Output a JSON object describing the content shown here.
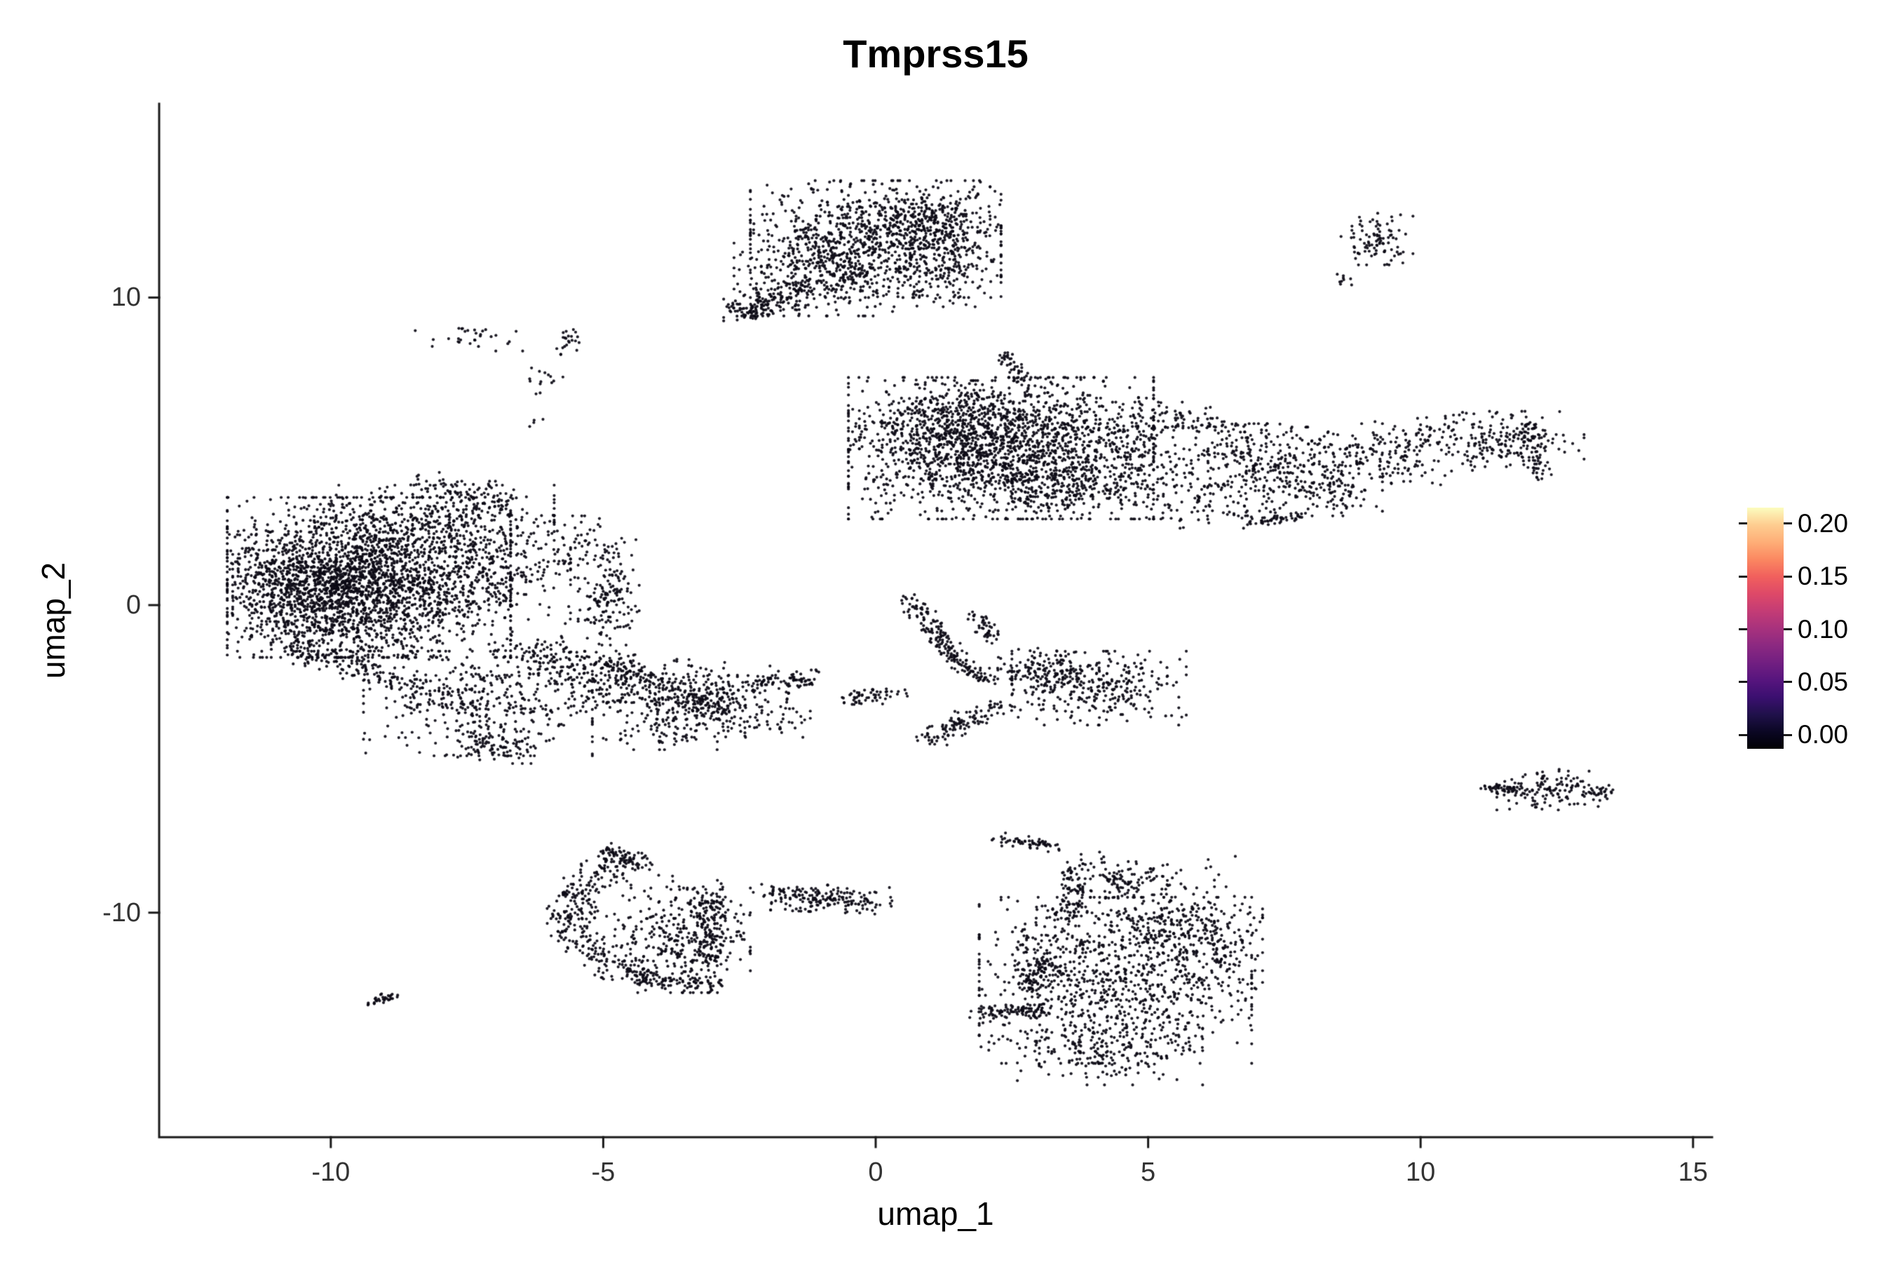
{
  "chart_data": {
    "type": "scatter",
    "title": "Tmprss15",
    "xlabel": "umap_1",
    "ylabel": "umap_2",
    "xlim": [
      -13.15,
      15.35
    ],
    "ylim": [
      -17.3,
      16.3
    ],
    "xticks": [
      -10,
      -5,
      0,
      5,
      10,
      15
    ],
    "xtick_labels": [
      "-10",
      "-5",
      "0",
      "5",
      "10",
      "15"
    ],
    "yticks": [
      -10,
      0,
      10
    ],
    "ytick_labels": [
      "-10",
      "0",
      "10"
    ],
    "grid": false,
    "legend_position": "right",
    "axis_color": "#1a1a1a",
    "point": {
      "color": "#0c0a15",
      "radius": 2.1,
      "alpha": 0.92
    },
    "colorbar": {
      "palette_name": "magma",
      "ticks": [
        "0.20",
        "0.15",
        "0.10",
        "0.05",
        "0.00"
      ],
      "tick_values": [
        0.2,
        0.15,
        0.1,
        0.05,
        0.0
      ],
      "value_top": 0.215,
      "value_bottom": -0.013,
      "gradient_bottom_to_top": [
        "#000004",
        "#0b0724",
        "#20114b",
        "#3b0f70",
        "#57157e",
        "#721f81",
        "#8c2981",
        "#a8327d",
        "#c43c75",
        "#de4968",
        "#f1605d",
        "#fb8861",
        "#feae77",
        "#fecd90",
        "#fcfdbf"
      ]
    },
    "clusters": [
      {
        "type": "blob",
        "cx": 0.0,
        "cy": 11.9,
        "sx": 1.15,
        "sy": 0.95,
        "n": 850
      },
      {
        "type": "blob",
        "cx": -0.9,
        "cy": 10.8,
        "sx": 0.85,
        "sy": 0.7,
        "n": 320
      },
      {
        "type": "blob",
        "cx": 0.9,
        "cy": 12.6,
        "sx": 0.6,
        "sy": 0.5,
        "n": 200
      },
      {
        "type": "blob",
        "cx": 1.3,
        "cy": 11.3,
        "sx": 0.5,
        "sy": 0.8,
        "n": 150
      },
      {
        "type": "line",
        "x1": -2.45,
        "y1": 9.55,
        "x2": -1.3,
        "y2": 10.3,
        "jitter": 0.22,
        "n": 110
      },
      {
        "type": "blob",
        "cx": -2.35,
        "cy": 9.6,
        "sx": 0.22,
        "sy": 0.18,
        "n": 50
      },
      {
        "type": "line",
        "x1": 2.35,
        "y1": 8.2,
        "x2": 2.7,
        "y2": 7.3,
        "jitter": 0.1,
        "n": 45
      },
      {
        "type": "blob",
        "cx": -7.45,
        "cy": 8.7,
        "sx": 0.5,
        "sy": 0.22,
        "n": 30
      },
      {
        "type": "line",
        "x1": -5.75,
        "y1": 8.1,
        "x2": -5.6,
        "y2": 9.0,
        "jitter": 0.12,
        "n": 22
      },
      {
        "type": "blob",
        "cx": -6.1,
        "cy": 7.3,
        "sx": 0.18,
        "sy": 0.25,
        "n": 14
      },
      {
        "type": "blob",
        "cx": -6.15,
        "cy": 6.0,
        "sx": 0.1,
        "sy": 0.1,
        "n": 4
      },
      {
        "type": "blob",
        "cx": 9.2,
        "cy": 11.9,
        "sx": 0.33,
        "sy": 0.42,
        "n": 95
      },
      {
        "type": "blob",
        "cx": 8.6,
        "cy": 10.65,
        "sx": 0.12,
        "sy": 0.12,
        "n": 9
      },
      {
        "type": "blob",
        "cx": 2.3,
        "cy": 5.1,
        "sx": 1.4,
        "sy": 1.15,
        "n": 1450
      },
      {
        "type": "blob",
        "cx": 1.5,
        "cy": 5.7,
        "sx": 0.9,
        "sy": 0.8,
        "n": 500
      },
      {
        "type": "blob",
        "cx": 4.3,
        "cy": 4.7,
        "sx": 0.9,
        "sy": 0.95,
        "n": 320
      },
      {
        "type": "blob",
        "cx": 3.1,
        "cy": 3.8,
        "sx": 0.7,
        "sy": 0.5,
        "n": 150
      },
      {
        "type": "blob",
        "cx": 7.2,
        "cy": 4.4,
        "sx": 1.05,
        "sy": 0.75,
        "n": 330
      },
      {
        "type": "blob",
        "cx": 9.5,
        "cy": 4.9,
        "sx": 1.3,
        "sy": 0.55,
        "n": 280,
        "rot": 8
      },
      {
        "type": "blob",
        "cx": 11.5,
        "cy": 5.4,
        "sx": 0.75,
        "sy": 0.45,
        "n": 160
      },
      {
        "type": "line",
        "x1": 11.95,
        "y1": 5.9,
        "x2": 12.2,
        "y2": 4.05,
        "jitter": 0.12,
        "n": 55
      },
      {
        "type": "blob",
        "cx": 6.0,
        "cy": 3.4,
        "sx": 0.8,
        "sy": 0.45,
        "n": 90
      },
      {
        "type": "line",
        "x1": 6.8,
        "y1": 2.62,
        "x2": 7.9,
        "y2": 2.95,
        "jitter": 0.07,
        "n": 45
      },
      {
        "type": "blob",
        "cx": 8.3,
        "cy": 3.6,
        "sx": 0.5,
        "sy": 0.3,
        "n": 50
      },
      {
        "type": "line",
        "x1": 5.3,
        "y1": 6.3,
        "x2": 6.6,
        "y2": 5.6,
        "jitter": 0.25,
        "n": 70
      },
      {
        "type": "blob",
        "cx": -9.3,
        "cy": 0.9,
        "sx": 1.3,
        "sy": 1.3,
        "n": 2000
      },
      {
        "type": "blob",
        "cx": -9.9,
        "cy": 0.3,
        "sx": 0.95,
        "sy": 0.9,
        "n": 700
      },
      {
        "type": "blob",
        "cx": -7.9,
        "cy": 2.7,
        "sx": 1.0,
        "sy": 0.6,
        "n": 280
      },
      {
        "type": "blob",
        "cx": -6.9,
        "cy": 0.9,
        "sx": 0.65,
        "sy": 0.75,
        "n": 220
      },
      {
        "type": "line",
        "x1": -10.9,
        "y1": -1.3,
        "x2": -8.2,
        "y2": -2.7,
        "jitter": 0.2,
        "n": 160
      },
      {
        "type": "blob",
        "cx": -7.3,
        "cy": -3.2,
        "sx": 1.05,
        "sy": 0.85,
        "n": 380
      },
      {
        "type": "blob",
        "cx": -6.9,
        "cy": -4.55,
        "sx": 0.4,
        "sy": 0.3,
        "n": 90
      },
      {
        "type": "line",
        "x1": -6.6,
        "y1": -1.2,
        "x2": -5.3,
        "y2": -2.1,
        "jitter": 0.3,
        "n": 110
      },
      {
        "type": "blob",
        "cx": -4.9,
        "cy": 0.2,
        "sx": 0.28,
        "sy": 0.75,
        "n": 150
      },
      {
        "type": "blob",
        "cx": -5.3,
        "cy": 1.9,
        "sx": 0.45,
        "sy": 0.5,
        "n": 70
      },
      {
        "type": "line",
        "x1": -8.3,
        "y1": 3.9,
        "x2": -6.7,
        "y2": 3.3,
        "jitter": 0.25,
        "n": 90
      },
      {
        "type": "blob",
        "cx": -11.0,
        "cy": 0.6,
        "sx": 0.35,
        "sy": 0.9,
        "n": 150
      },
      {
        "type": "blob",
        "cx": -4.0,
        "cy": -2.7,
        "sx": 1.2,
        "sy": 0.5,
        "n": 380,
        "rot": -8
      },
      {
        "type": "blob",
        "cx": -3.3,
        "cy": -3.2,
        "sx": 0.45,
        "sy": 0.35,
        "n": 150
      },
      {
        "type": "blob",
        "cx": -3.7,
        "cy": -4.1,
        "sx": 0.65,
        "sy": 0.3,
        "n": 80
      },
      {
        "type": "line",
        "x1": -2.3,
        "y1": -2.55,
        "x2": -1.1,
        "y2": -2.4,
        "jitter": 0.15,
        "n": 80
      },
      {
        "type": "blob",
        "cx": -2.0,
        "cy": -3.7,
        "sx": 0.4,
        "sy": 0.3,
        "n": 45
      },
      {
        "type": "line",
        "x1": -4.9,
        "y1": -1.8,
        "x2": -4.3,
        "y2": -2.4,
        "jitter": 0.2,
        "n": 70
      },
      {
        "type": "line",
        "x1": 0.65,
        "y1": 0.2,
        "x2": 1.55,
        "y2": -1.95,
        "jitter": 0.13,
        "n": 140
      },
      {
        "type": "line",
        "x1": 1.55,
        "y1": -1.95,
        "x2": 2.05,
        "y2": -2.45,
        "jitter": 0.12,
        "n": 50
      },
      {
        "type": "line",
        "x1": 1.85,
        "y1": -0.3,
        "x2": 2.15,
        "y2": -1.2,
        "jitter": 0.12,
        "n": 45
      },
      {
        "type": "blob",
        "cx": 4.1,
        "cy": -2.7,
        "sx": 0.8,
        "sy": 0.6,
        "n": 300
      },
      {
        "type": "blob",
        "cx": 3.3,
        "cy": -2.1,
        "sx": 0.4,
        "sy": 0.35,
        "n": 90
      },
      {
        "type": "line",
        "x1": 0.9,
        "y1": -4.35,
        "x2": 2.3,
        "y2": -3.3,
        "jitter": 0.15,
        "n": 110
      },
      {
        "type": "blob",
        "cx": 2.7,
        "cy": -1.9,
        "sx": 0.3,
        "sy": 0.25,
        "n": 40
      },
      {
        "type": "line",
        "x1": -0.6,
        "y1": -3.15,
        "x2": 0.4,
        "y2": -2.8,
        "jitter": 0.13,
        "n": 55
      },
      {
        "type": "arc",
        "cx": -3.5,
        "cy": -10.1,
        "r": 2.1,
        "a1": 110,
        "a2": 255,
        "jitter": 0.22,
        "n": 330
      },
      {
        "type": "blob",
        "cx": -3.4,
        "cy": -10.9,
        "sx": 0.55,
        "sy": 0.85,
        "n": 260
      },
      {
        "type": "line",
        "x1": -3.05,
        "y1": -9.2,
        "x2": -3.0,
        "y2": -11.6,
        "jitter": 0.18,
        "n": 130
      },
      {
        "type": "blob",
        "cx": -4.2,
        "cy": -10.4,
        "sx": 0.7,
        "sy": 0.9,
        "n": 90
      },
      {
        "type": "line",
        "x1": -5.05,
        "y1": -7.9,
        "x2": -4.55,
        "y2": -8.35,
        "jitter": 0.12,
        "n": 45
      },
      {
        "type": "line",
        "x1": -4.4,
        "y1": -12.15,
        "x2": -3.0,
        "y2": -12.35,
        "jitter": 0.12,
        "n": 80
      },
      {
        "type": "line",
        "x1": -9.3,
        "y1": -12.95,
        "x2": -8.85,
        "y2": -12.7,
        "jitter": 0.07,
        "n": 32
      },
      {
        "type": "blob",
        "cx": -0.8,
        "cy": -9.55,
        "sx": 0.55,
        "sy": 0.22,
        "n": 170,
        "rot": -4
      },
      {
        "type": "blob",
        "cx": -1.85,
        "cy": -9.35,
        "sx": 0.25,
        "sy": 0.15,
        "n": 18
      },
      {
        "type": "blob",
        "cx": 4.4,
        "cy": -12.2,
        "sx": 1.25,
        "sy": 1.35,
        "n": 850
      },
      {
        "type": "blob",
        "cx": 5.6,
        "cy": -10.4,
        "sx": 0.75,
        "sy": 0.5,
        "n": 230
      },
      {
        "type": "line",
        "x1": 2.25,
        "y1": -7.6,
        "x2": 3.3,
        "y2": -7.85,
        "jitter": 0.1,
        "n": 60
      },
      {
        "type": "line",
        "x1": 3.6,
        "y1": -8.5,
        "x2": 3.65,
        "y2": -10.3,
        "jitter": 0.12,
        "n": 90
      },
      {
        "type": "line",
        "x1": 4.0,
        "y1": -8.3,
        "x2": 4.7,
        "y2": -9.4,
        "jitter": 0.15,
        "n": 60
      },
      {
        "type": "line",
        "x1": 1.85,
        "y1": -13.25,
        "x2": 3.2,
        "y2": -13.15,
        "jitter": 0.1,
        "n": 85
      },
      {
        "type": "blob",
        "cx": 4.3,
        "cy": -14.5,
        "sx": 0.85,
        "sy": 0.55,
        "n": 200
      },
      {
        "type": "blob",
        "cx": 6.3,
        "cy": -11.6,
        "sx": 0.4,
        "sy": 0.6,
        "n": 80
      },
      {
        "type": "blob",
        "cx": 5.2,
        "cy": -8.9,
        "sx": 0.7,
        "sy": 0.4,
        "n": 70
      },
      {
        "type": "blob",
        "cx": 3.0,
        "cy": -11.5,
        "sx": 0.4,
        "sy": 0.8,
        "n": 90
      },
      {
        "type": "line",
        "x1": 2.6,
        "y1": -12.4,
        "x2": 3.4,
        "y2": -11.6,
        "jitter": 0.2,
        "n": 60
      },
      {
        "type": "blob",
        "cx": 12.4,
        "cy": -6.0,
        "sx": 0.5,
        "sy": 0.33,
        "n": 140
      },
      {
        "type": "line",
        "x1": 11.15,
        "y1": -5.9,
        "x2": 11.85,
        "y2": -6.0,
        "jitter": 0.07,
        "n": 40
      },
      {
        "type": "blob",
        "cx": 13.25,
        "cy": -6.1,
        "sx": 0.15,
        "sy": 0.12,
        "n": 20
      }
    ]
  }
}
